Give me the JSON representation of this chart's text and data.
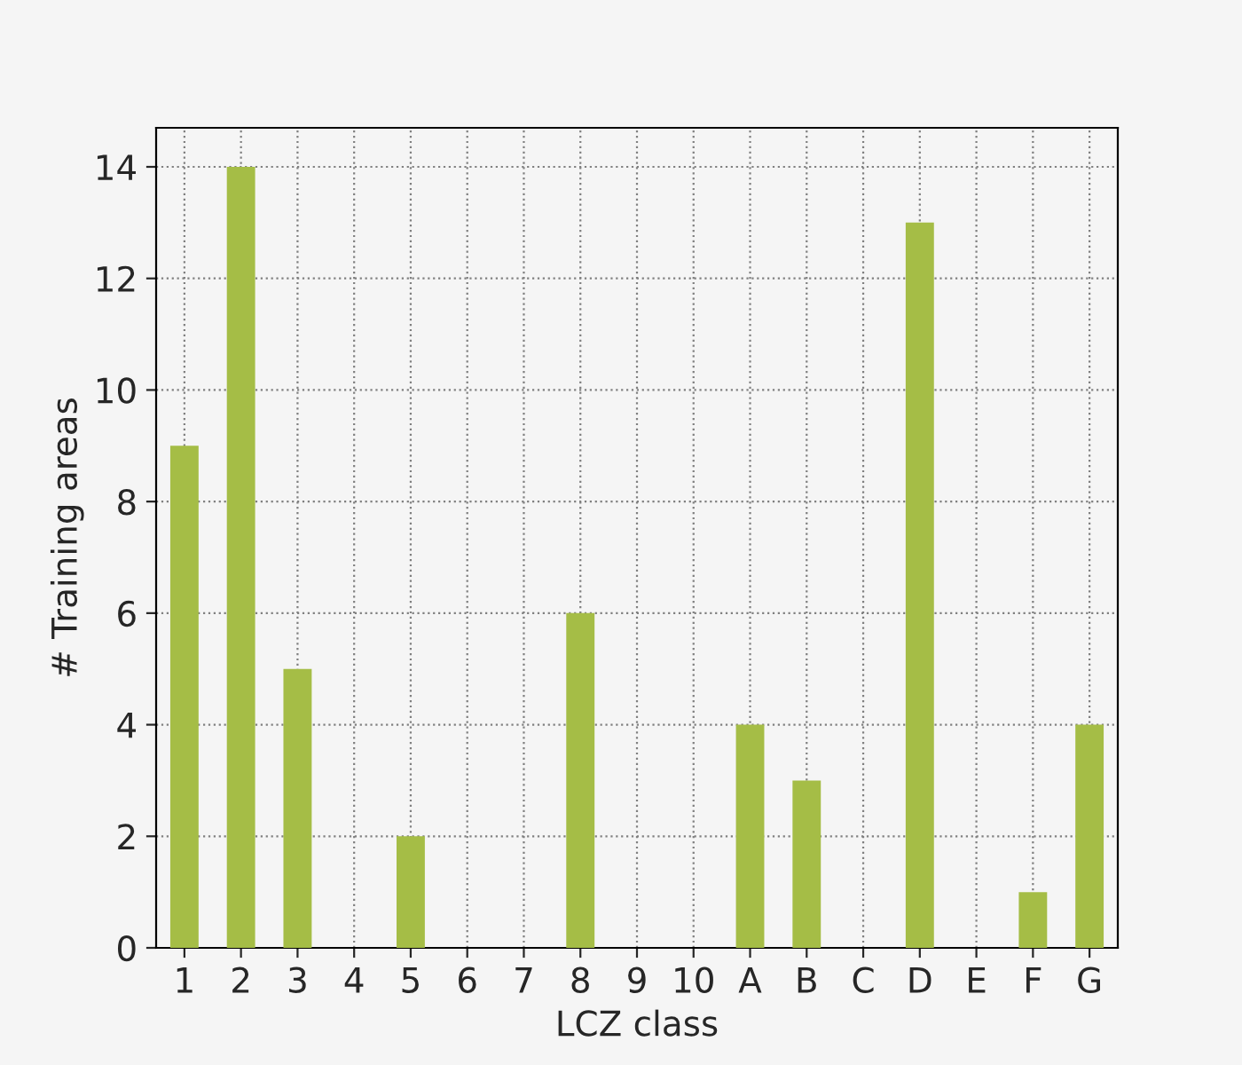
{
  "chart_data": {
    "type": "bar",
    "xlabel": "LCZ class",
    "ylabel": "# Training areas",
    "categories": [
      "1",
      "2",
      "3",
      "4",
      "5",
      "6",
      "7",
      "8",
      "9",
      "10",
      "A",
      "B",
      "C",
      "D",
      "E",
      "F",
      "G"
    ],
    "values": [
      9,
      14,
      5,
      0,
      2,
      0,
      0,
      6,
      0,
      0,
      4,
      3,
      0,
      13,
      0,
      1,
      4
    ],
    "color": "#a5bd46",
    "ylim": [
      0,
      14.7
    ],
    "yticks": [
      0,
      2,
      4,
      6,
      8,
      10,
      12,
      14
    ],
    "grid": true
  }
}
